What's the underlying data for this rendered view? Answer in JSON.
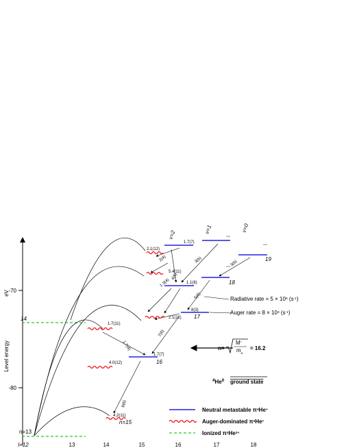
{
  "axis": {
    "y_label": "Level energy",
    "y_unit": "eV",
    "y_ticks": [
      "-70",
      "-80"
    ],
    "x_label": "l=12",
    "x_ticks": [
      "13",
      "14",
      "15",
      "16",
      "17",
      "18"
    ]
  },
  "series_labels": [
    "v=2",
    "v=1",
    "v=0"
  ],
  "levels": [
    "n=13",
    "14",
    "n=15",
    "16",
    "17",
    "18",
    "19"
  ],
  "rates": [
    "2.1(12)",
    "1.7(7)",
    "3(6)",
    "3(6)",
    "2(4)",
    "5.4(11)",
    "1.1(6)",
    "4(6)",
    "1.3(4)",
    "5(6)",
    "8(3)",
    "2.1(11)",
    "1.7(11)",
    "1.7(4)",
    "7(6)",
    "1.7(7)",
    "4.0(12)",
    "8(6)",
    "4.2(11)"
  ],
  "notes": {
    "radiative": {
      "text": "Radiative rate = 5 × 10",
      "exp": "6",
      "unit": " (s",
      "unit_exp": "-1",
      "end": ")"
    },
    "auger": {
      "text": "Auger rate = 8 × 10",
      "exp": "3",
      "unit": " (s",
      "unit_exp": "-1",
      "end": ")"
    }
  },
  "formula": {
    "lhs": "n=",
    "num": "M",
    "num_sup": "*",
    "den": "m",
    "den_sub": "e",
    "rhs": "= 16.2"
  },
  "ground_state": {
    "sup": "4",
    "element": "He",
    "sup2": "0",
    "text": "ground state"
  },
  "legend": [
    {
      "pre": "Neutral metastable π",
      "sup": "4",
      "mid": "He",
      "sup2": "+"
    },
    {
      "pre": "Auger-dominated π",
      "sup": "4",
      "mid": "He",
      "sup2": "+"
    },
    {
      "pre": "Ionized π",
      "sup": "4",
      "mid": "He",
      "sup2": "2+"
    }
  ]
}
